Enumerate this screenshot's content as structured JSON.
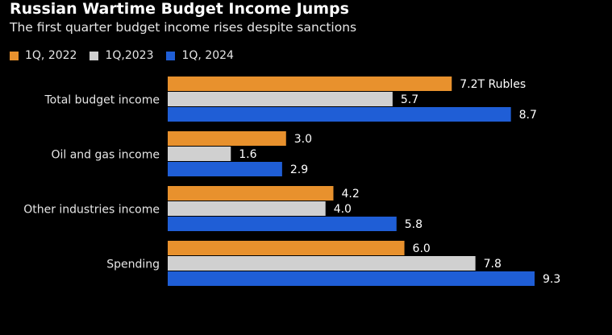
{
  "chart_data": {
    "type": "bar",
    "orientation": "horizontal",
    "title": "Russian Wartime Budget Income Jumps",
    "subtitle": "The first quarter budget income rises despite sanctions",
    "legend_position": "top-left",
    "categories": [
      "Total budget income",
      "Oil and gas income",
      "Other industries income",
      "Spending"
    ],
    "series": [
      {
        "name": "1Q, 2022",
        "color": "#e8912d",
        "values": [
          7.2,
          3.0,
          4.2,
          6.0
        ],
        "labels": [
          "7.2T Rubles",
          "3.0",
          "4.2",
          "6.0"
        ]
      },
      {
        "name": "1Q,2023",
        "color": "#d0d0d0",
        "values": [
          5.7,
          1.6,
          4.0,
          7.8
        ],
        "labels": [
          "5.7",
          "1.6",
          "4.0",
          "7.8"
        ]
      },
      {
        "name": "1Q, 2024",
        "color": "#1f5ed6",
        "values": [
          8.7,
          2.9,
          5.8,
          9.3
        ],
        "labels": [
          "8.7",
          "2.9",
          "5.8",
          "9.3"
        ]
      }
    ],
    "xlim": [
      0,
      9.3
    ],
    "grid": false
  }
}
